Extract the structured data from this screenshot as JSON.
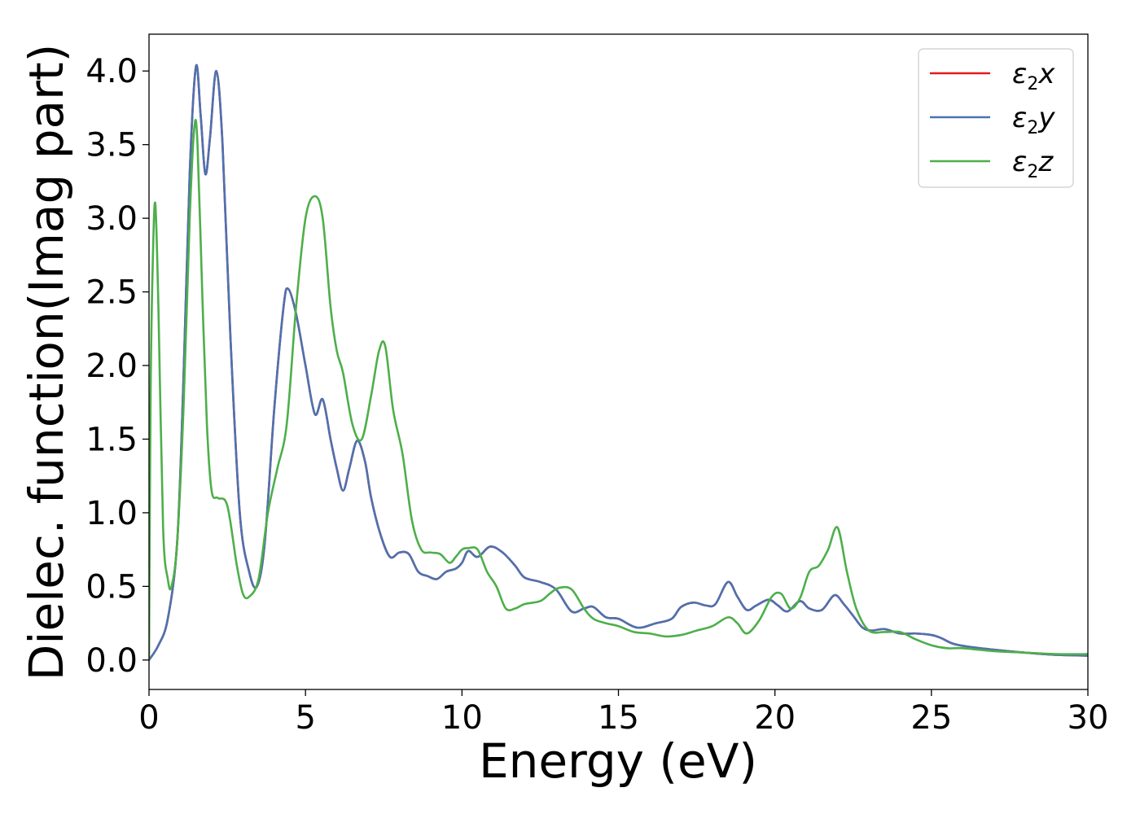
{
  "chart_data": {
    "type": "line",
    "xlabel": "Energy (eV)",
    "ylabel": "Dielec. function(Imag part)",
    "xlim": [
      0,
      30
    ],
    "ylim": [
      -0.2,
      4.25
    ],
    "xticks": [
      0,
      5,
      10,
      15,
      20,
      25,
      30
    ],
    "xtick_labels": [
      "0",
      "5",
      "10",
      "15",
      "20",
      "25",
      "30"
    ],
    "yticks": [
      0.0,
      0.5,
      1.0,
      1.5,
      2.0,
      2.5,
      3.0,
      3.5,
      4.0
    ],
    "ytick_labels": [
      "0.0",
      "0.5",
      "1.0",
      "1.5",
      "2.0",
      "2.5",
      "3.0",
      "3.5",
      "4.0"
    ],
    "grid": false,
    "legend_position": "top-right",
    "series": [
      {
        "name": "ε2x",
        "label_base": "ε",
        "label_sub": "2",
        "label_var": "x",
        "color": "#e41a1c",
        "x": [
          0,
          0.3,
          0.6,
          0.9,
          1.1,
          1.3,
          1.5,
          1.65,
          1.8,
          1.95,
          2.15,
          2.35,
          2.6,
          2.9,
          3.2,
          3.45,
          3.7,
          4.0,
          4.3,
          4.45,
          4.7,
          5.0,
          5.3,
          5.55,
          5.8,
          6.0,
          6.2,
          6.4,
          6.65,
          6.9,
          7.1,
          7.4,
          7.7,
          8.0,
          8.3,
          8.6,
          8.9,
          9.2,
          9.5,
          9.8,
          10.0,
          10.2,
          10.5,
          10.9,
          11.3,
          11.7,
          12.0,
          12.5,
          13.0,
          13.5,
          13.9,
          14.2,
          14.6,
          15.0,
          15.6,
          16.2,
          16.7,
          17.0,
          17.4,
          17.8,
          18.1,
          18.5,
          18.8,
          19.1,
          19.4,
          19.8,
          20.1,
          20.4,
          20.8,
          21.1,
          21.5,
          21.9,
          22.2,
          22.5,
          22.8,
          23.1,
          23.5,
          24.0,
          24.5,
          25.0,
          25.3,
          25.7,
          26.2,
          27.0,
          28.0,
          29.0,
          30.0
        ],
        "y": [
          0.0,
          0.1,
          0.28,
          0.8,
          1.9,
          3.3,
          4.03,
          3.7,
          3.3,
          3.55,
          4.0,
          3.5,
          2.2,
          1.0,
          0.6,
          0.5,
          0.8,
          1.7,
          2.4,
          2.52,
          2.35,
          2.0,
          1.67,
          1.77,
          1.5,
          1.3,
          1.15,
          1.3,
          1.49,
          1.35,
          1.1,
          0.85,
          0.7,
          0.73,
          0.72,
          0.6,
          0.57,
          0.55,
          0.6,
          0.62,
          0.66,
          0.74,
          0.7,
          0.77,
          0.73,
          0.64,
          0.56,
          0.53,
          0.48,
          0.33,
          0.35,
          0.36,
          0.29,
          0.28,
          0.22,
          0.25,
          0.28,
          0.36,
          0.39,
          0.37,
          0.38,
          0.53,
          0.43,
          0.34,
          0.37,
          0.41,
          0.37,
          0.33,
          0.4,
          0.35,
          0.34,
          0.44,
          0.38,
          0.3,
          0.22,
          0.2,
          0.21,
          0.18,
          0.18,
          0.17,
          0.15,
          0.11,
          0.09,
          0.07,
          0.05,
          0.035,
          0.03
        ]
      },
      {
        "name": "ε2y",
        "label_base": "ε",
        "label_sub": "2",
        "label_var": "y",
        "color": "#4c72b0",
        "x": [
          0,
          0.3,
          0.6,
          0.9,
          1.1,
          1.3,
          1.5,
          1.65,
          1.8,
          1.95,
          2.15,
          2.35,
          2.6,
          2.9,
          3.2,
          3.45,
          3.7,
          4.0,
          4.3,
          4.45,
          4.7,
          5.0,
          5.3,
          5.55,
          5.8,
          6.0,
          6.2,
          6.4,
          6.65,
          6.9,
          7.1,
          7.4,
          7.7,
          8.0,
          8.3,
          8.6,
          8.9,
          9.2,
          9.5,
          9.8,
          10.0,
          10.2,
          10.5,
          10.9,
          11.3,
          11.7,
          12.0,
          12.5,
          13.0,
          13.5,
          13.9,
          14.2,
          14.6,
          15.0,
          15.6,
          16.2,
          16.7,
          17.0,
          17.4,
          17.8,
          18.1,
          18.5,
          18.8,
          19.1,
          19.4,
          19.8,
          20.1,
          20.4,
          20.8,
          21.1,
          21.5,
          21.9,
          22.2,
          22.5,
          22.8,
          23.1,
          23.5,
          24.0,
          24.5,
          25.0,
          25.3,
          25.7,
          26.2,
          27.0,
          28.0,
          29.0,
          30.0
        ],
        "y": [
          0.0,
          0.1,
          0.28,
          0.8,
          1.9,
          3.3,
          4.03,
          3.7,
          3.3,
          3.55,
          4.0,
          3.5,
          2.2,
          1.0,
          0.6,
          0.5,
          0.8,
          1.7,
          2.4,
          2.52,
          2.35,
          2.0,
          1.67,
          1.77,
          1.5,
          1.3,
          1.15,
          1.3,
          1.49,
          1.35,
          1.1,
          0.85,
          0.7,
          0.73,
          0.72,
          0.6,
          0.57,
          0.55,
          0.6,
          0.62,
          0.66,
          0.74,
          0.7,
          0.77,
          0.73,
          0.64,
          0.56,
          0.53,
          0.48,
          0.33,
          0.35,
          0.36,
          0.29,
          0.28,
          0.22,
          0.25,
          0.28,
          0.36,
          0.39,
          0.37,
          0.38,
          0.53,
          0.43,
          0.34,
          0.37,
          0.41,
          0.37,
          0.33,
          0.4,
          0.35,
          0.34,
          0.44,
          0.38,
          0.3,
          0.22,
          0.2,
          0.21,
          0.18,
          0.18,
          0.17,
          0.15,
          0.11,
          0.09,
          0.07,
          0.05,
          0.035,
          0.03
        ]
      },
      {
        "name": "ε2z",
        "label_base": "ε",
        "label_sub": "2",
        "label_var": "z",
        "color": "#4daf4a",
        "x": [
          0,
          0.05,
          0.12,
          0.2,
          0.3,
          0.45,
          0.6,
          0.72,
          0.9,
          1.1,
          1.3,
          1.45,
          1.55,
          1.7,
          1.85,
          2.0,
          2.2,
          2.5,
          2.8,
          3.0,
          3.2,
          3.5,
          3.8,
          4.1,
          4.4,
          4.7,
          5.0,
          5.3,
          5.55,
          5.8,
          6.0,
          6.2,
          6.5,
          6.8,
          7.1,
          7.35,
          7.55,
          7.8,
          8.1,
          8.4,
          8.7,
          9.0,
          9.3,
          9.6,
          9.8,
          10.0,
          10.2,
          10.5,
          10.8,
          11.1,
          11.4,
          11.7,
          12.0,
          12.5,
          12.8,
          13.1,
          13.5,
          13.9,
          14.2,
          14.6,
          15.0,
          15.5,
          16.0,
          16.5,
          17.0,
          17.5,
          18.0,
          18.5,
          18.8,
          19.1,
          19.5,
          19.9,
          20.2,
          20.5,
          20.8,
          21.1,
          21.4,
          21.7,
          22.0,
          22.3,
          22.6,
          23.0,
          23.5,
          24.0,
          24.5,
          25.0,
          25.5,
          26.0,
          27.0,
          28.0,
          29.0,
          30.0
        ],
        "y": [
          0.0,
          1.8,
          2.7,
          3.1,
          2.4,
          0.9,
          0.55,
          0.5,
          0.8,
          1.7,
          3.0,
          3.62,
          3.5,
          2.5,
          1.6,
          1.15,
          1.1,
          1.05,
          0.65,
          0.45,
          0.43,
          0.55,
          1.0,
          1.3,
          1.6,
          2.4,
          3.0,
          3.15,
          3.0,
          2.4,
          2.1,
          1.95,
          1.6,
          1.5,
          1.8,
          2.1,
          2.13,
          1.7,
          1.4,
          0.95,
          0.75,
          0.73,
          0.72,
          0.66,
          0.7,
          0.75,
          0.76,
          0.75,
          0.6,
          0.5,
          0.35,
          0.35,
          0.38,
          0.4,
          0.45,
          0.49,
          0.48,
          0.35,
          0.28,
          0.25,
          0.23,
          0.19,
          0.18,
          0.16,
          0.17,
          0.2,
          0.23,
          0.29,
          0.25,
          0.18,
          0.27,
          0.43,
          0.45,
          0.35,
          0.42,
          0.6,
          0.64,
          0.75,
          0.9,
          0.6,
          0.35,
          0.2,
          0.19,
          0.19,
          0.14,
          0.1,
          0.08,
          0.08,
          0.06,
          0.05,
          0.04,
          0.04
        ]
      }
    ]
  }
}
